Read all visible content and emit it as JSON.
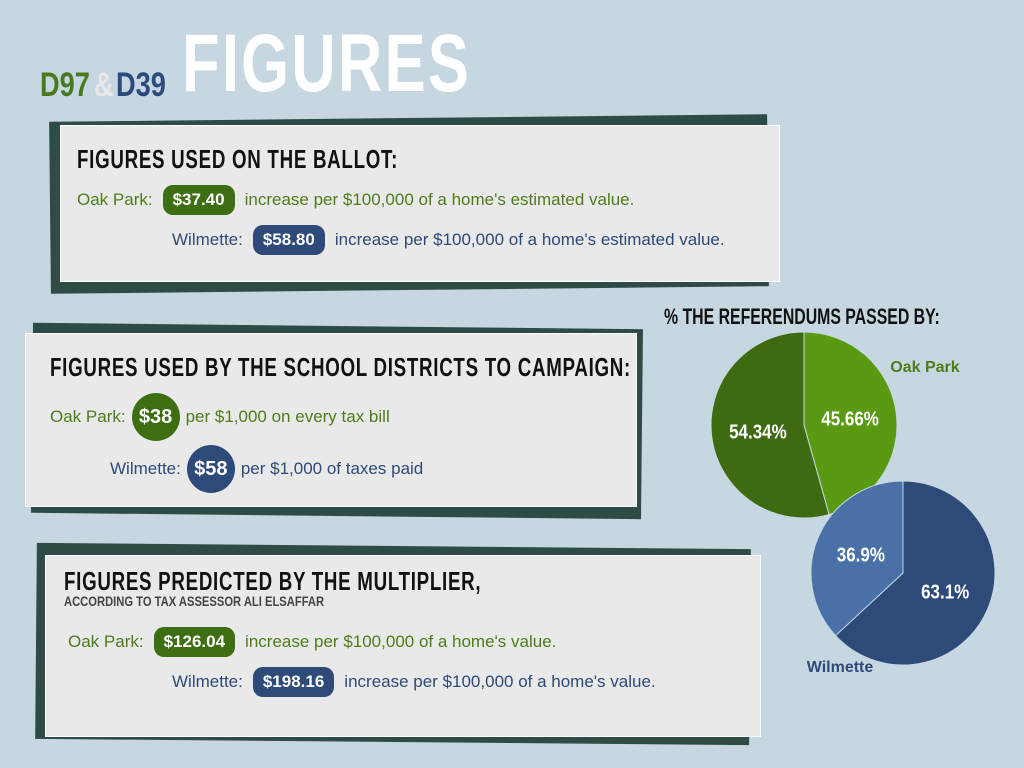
{
  "header": {
    "d97": "D97",
    "amp": "&",
    "d39": "D39",
    "title": "FIGURES"
  },
  "sections": [
    {
      "heading": "FIGURES USED ON THE BALLOT:",
      "rows": [
        {
          "place": "Oak Park:",
          "amount": "$37.40",
          "text": "increase per $100,000 of a home's estimated value."
        },
        {
          "place": "Wilmette:",
          "amount": "$58.80",
          "text": "increase per $100,000 of a home's estimated value."
        }
      ]
    },
    {
      "heading": "FIGURES USED BY THE SCHOOL DISTRICTS TO CAMPAIGN:",
      "rows": [
        {
          "place": "Oak Park:",
          "amount": "$38",
          "text": "per $1,000 on every tax bill"
        },
        {
          "place": "Wilmette:",
          "amount": "$58",
          "text": "per $1,000 of taxes paid"
        }
      ]
    },
    {
      "heading": "FIGURES PREDICTED BY THE MULTIPLIER,",
      "subheading": "ACCORDING TO TAX ASSESSOR ALI ELSAFFAR",
      "rows": [
        {
          "place": "Oak Park:",
          "amount": "$126.04",
          "text": "increase per $100,000 of a home's value."
        },
        {
          "place": "Wilmette:",
          "amount": "$198.16",
          "text": "increase per $100,000 of a home's value."
        }
      ]
    }
  ],
  "pies_heading": "% THE REFERENDUMS PASSED BY:",
  "chart_data": [
    {
      "type": "pie",
      "title": "Oak Park",
      "values": [
        45.66,
        54.34
      ],
      "value_labels": [
        "45.66%",
        "54.34%"
      ],
      "colors": [
        "#5a9a12",
        "#3e6a12"
      ]
    },
    {
      "type": "pie",
      "title": "Wilmette",
      "values": [
        63.1,
        36.9
      ],
      "value_labels": [
        "63.1%",
        "36.9%"
      ],
      "colors": [
        "#2d4a78",
        "#4a70a8"
      ]
    }
  ]
}
